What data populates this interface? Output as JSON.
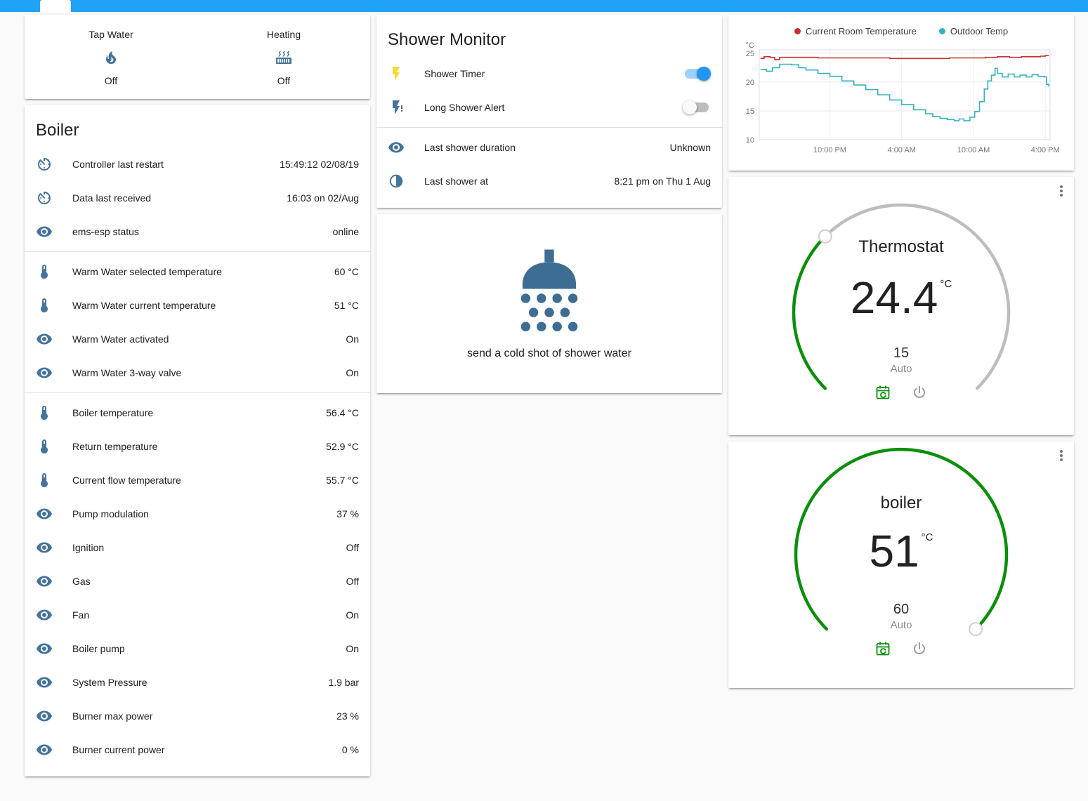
{
  "page": {
    "accent": "#1fa3f6",
    "background": "#fafafa",
    "icon_color": "#44739e",
    "gauge_green": "#0b8f0b"
  },
  "climate_summary": {
    "items": [
      {
        "label": "Tap Water",
        "icon": "fire-icon",
        "state": "Off"
      },
      {
        "label": "Heating",
        "icon": "radiator-icon",
        "state": "Off"
      }
    ]
  },
  "boiler": {
    "title": "Boiler",
    "rows": [
      {
        "icon": "timer-icon",
        "label": "Controller last restart",
        "value": "15:49:12 02/08/19"
      },
      {
        "icon": "timer-icon",
        "label": "Data last received",
        "value": "16:03 on 02/Aug"
      },
      {
        "icon": "eye-icon",
        "label": "ems-esp status",
        "value": "online",
        "divider_after": true
      },
      {
        "icon": "thermometer-icon",
        "label": "Warm Water selected temperature",
        "value": "60 °C"
      },
      {
        "icon": "thermometer-icon",
        "label": "Warm Water current temperature",
        "value": "51 °C"
      },
      {
        "icon": "eye-icon",
        "label": "Warm Water activated",
        "value": "On"
      },
      {
        "icon": "eye-icon",
        "label": "Warm Water 3-way valve",
        "value": "On",
        "divider_after": true
      },
      {
        "icon": "thermometer-icon",
        "label": "Boiler temperature",
        "value": "56.4 °C"
      },
      {
        "icon": "thermometer-icon",
        "label": "Return temperature",
        "value": "52.9 °C"
      },
      {
        "icon": "thermometer-icon",
        "label": "Current flow temperature",
        "value": "55.7 °C"
      },
      {
        "icon": "eye-icon",
        "label": "Pump modulation",
        "value": "37 %"
      },
      {
        "icon": "eye-icon",
        "label": "Ignition",
        "value": "Off"
      },
      {
        "icon": "eye-icon",
        "label": "Gas",
        "value": "Off"
      },
      {
        "icon": "eye-icon",
        "label": "Fan",
        "value": "On"
      },
      {
        "icon": "eye-icon",
        "label": "Boiler pump",
        "value": "On"
      },
      {
        "icon": "eye-icon",
        "label": "System Pressure",
        "value": "1.9 bar"
      },
      {
        "icon": "eye-icon",
        "label": "Burner max power",
        "value": "23 %"
      },
      {
        "icon": "eye-icon",
        "label": "Burner current power",
        "value": "0 %"
      }
    ]
  },
  "shower_monitor": {
    "title": "Shower Monitor",
    "toggles": [
      {
        "icon": "flash-icon",
        "icon_color": "#fdd835",
        "label": "Shower Timer",
        "on": true
      },
      {
        "icon": "flash-alert-icon",
        "icon_color": "#44739e",
        "label": "Long Shower Alert",
        "on": false
      }
    ],
    "info": [
      {
        "icon": "eye-icon",
        "label": "Last shower duration",
        "value": "Unknown"
      },
      {
        "icon": "clock-icon",
        "label": "Last shower at",
        "value": "8:21 pm on Thu 1 Aug"
      }
    ]
  },
  "shower_action": {
    "label": "send a cold shot of shower water"
  },
  "chart_data": {
    "type": "line",
    "unit": "°C",
    "ylim": [
      10,
      25.6
    ],
    "yticks": [
      10,
      15,
      20,
      25
    ],
    "xlim": [
      16.1,
      40.4
    ],
    "xticks": [
      {
        "t": 22,
        "label": "10:00 PM"
      },
      {
        "t": 28,
        "label": "4:00 AM"
      },
      {
        "t": 34,
        "label": "10:00 AM"
      },
      {
        "t": 40,
        "label": "4:00 PM"
      }
    ],
    "grid": true,
    "legend_position": "top",
    "series": [
      {
        "name": "Current Room Temperature",
        "color": "#c62f2f",
        "points": [
          [
            16.2,
            24.1
          ],
          [
            16.5,
            24.4
          ],
          [
            17.0,
            24.3
          ],
          [
            17.4,
            23.9
          ],
          [
            17.8,
            24.3
          ],
          [
            19.0,
            24.3
          ],
          [
            21.0,
            24.2
          ],
          [
            24.0,
            24.2
          ],
          [
            27.0,
            24.1
          ],
          [
            30.0,
            24.1
          ],
          [
            32.0,
            24.2
          ],
          [
            34.0,
            24.2
          ],
          [
            35.0,
            24.3
          ],
          [
            36.0,
            24.4
          ],
          [
            37.0,
            24.3
          ],
          [
            38.0,
            24.4
          ],
          [
            39.0,
            24.4
          ],
          [
            39.6,
            24.5
          ],
          [
            40.0,
            24.6
          ],
          [
            40.3,
            24.6
          ]
        ]
      },
      {
        "name": "Outdoor Temp",
        "color": "#35b2c0",
        "points": [
          [
            16.2,
            22.2
          ],
          [
            16.7,
            21.9
          ],
          [
            17.2,
            22.5
          ],
          [
            17.8,
            23.1
          ],
          [
            18.8,
            23.0
          ],
          [
            19.4,
            22.5
          ],
          [
            20.0,
            22.1
          ],
          [
            21.0,
            21.5
          ],
          [
            22.0,
            21.0
          ],
          [
            23.0,
            20.2
          ],
          [
            24.0,
            19.5
          ],
          [
            25.0,
            18.7
          ],
          [
            26.0,
            17.8
          ],
          [
            27.0,
            16.9
          ],
          [
            28.0,
            16.1
          ],
          [
            29.0,
            15.2
          ],
          [
            30.0,
            14.5
          ],
          [
            30.6,
            14.0
          ],
          [
            31.2,
            13.7
          ],
          [
            31.8,
            13.5
          ],
          [
            32.4,
            13.3
          ],
          [
            32.8,
            13.6
          ],
          [
            33.2,
            13.3
          ],
          [
            33.7,
            13.9
          ],
          [
            34.1,
            14.9
          ],
          [
            34.5,
            16.6
          ],
          [
            34.9,
            18.8
          ],
          [
            35.2,
            20.2
          ],
          [
            35.5,
            21.2
          ],
          [
            35.8,
            22.4
          ],
          [
            36.0,
            21.5
          ],
          [
            36.4,
            20.9
          ],
          [
            36.9,
            21.4
          ],
          [
            37.4,
            20.9
          ],
          [
            37.9,
            21.2
          ],
          [
            38.4,
            20.9
          ],
          [
            38.9,
            21.3
          ],
          [
            39.4,
            21.0
          ],
          [
            39.9,
            20.9
          ],
          [
            40.1,
            19.6
          ],
          [
            40.3,
            19.2
          ]
        ]
      }
    ]
  },
  "thermostat": {
    "title": "Thermostat",
    "current": "24.4",
    "unit": "°C",
    "setpoint": "15",
    "mode": "Auto",
    "gauge": {
      "min": 5,
      "max": 35,
      "value": 15,
      "active_color": "#0b8f0b",
      "track_color": "#bdbdbd"
    }
  },
  "boiler_gauge": {
    "title": "boiler",
    "current": "51",
    "unit": "°C",
    "setpoint": "60",
    "mode": "Auto",
    "gauge": {
      "min": 0,
      "max": 60,
      "value": 60,
      "active_color": "#0b8f0b",
      "track_color": "#bdbdbd"
    }
  }
}
